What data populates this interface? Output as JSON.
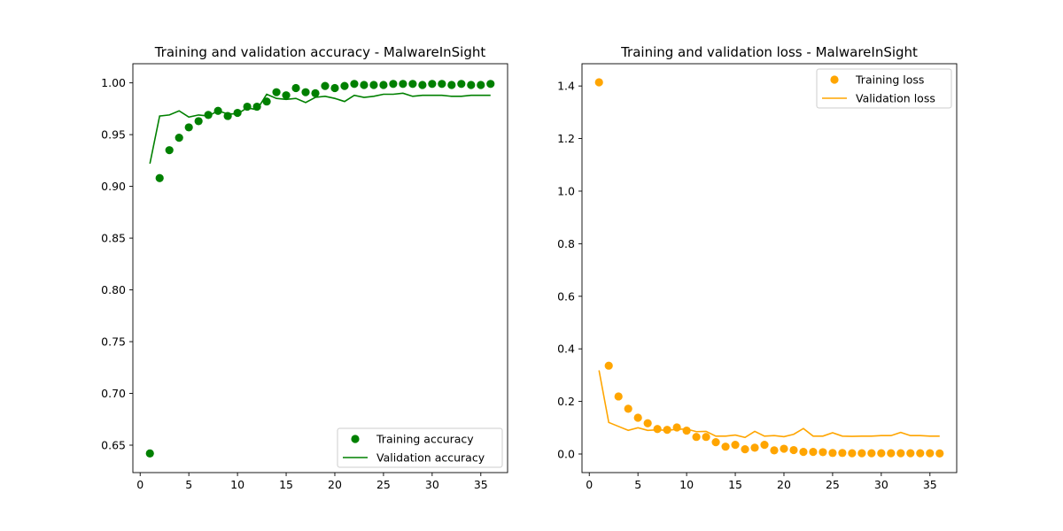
{
  "chart_data": [
    {
      "type": "scatter+line",
      "title": "Training and validation accuracy - MalwareInSight",
      "xlabel": "",
      "ylabel": "",
      "xlim": [
        -0.75,
        37.75
      ],
      "ylim": [
        0.6235,
        1.0185
      ],
      "xticks": [
        0,
        5,
        10,
        15,
        20,
        25,
        30,
        35
      ],
      "yticks": [
        0.65,
        0.7,
        0.75,
        0.8,
        0.85,
        0.9,
        0.95,
        1.0
      ],
      "ytick_labels": [
        "0.65",
        "0.70",
        "0.75",
        "0.80",
        "0.85",
        "0.90",
        "0.95",
        "1.00"
      ],
      "grid": false,
      "legend_position": "lower-right",
      "series": [
        {
          "name": "Training accuracy",
          "kind": "points",
          "color": "#008000",
          "x": [
            1,
            2,
            3,
            4,
            5,
            6,
            7,
            8,
            9,
            10,
            11,
            12,
            13,
            14,
            15,
            16,
            17,
            18,
            19,
            20,
            21,
            22,
            23,
            24,
            25,
            26,
            27,
            28,
            29,
            30,
            31,
            32,
            33,
            34,
            35,
            36
          ],
          "y": [
            0.642,
            0.908,
            0.935,
            0.947,
            0.957,
            0.963,
            0.969,
            0.973,
            0.968,
            0.971,
            0.977,
            0.977,
            0.982,
            0.991,
            0.988,
            0.995,
            0.991,
            0.99,
            0.997,
            0.995,
            0.997,
            0.999,
            0.998,
            0.998,
            0.998,
            0.999,
            0.999,
            0.999,
            0.998,
            0.999,
            0.999,
            0.998,
            0.999,
            0.998,
            0.998,
            0.999
          ]
        },
        {
          "name": "Validation accuracy",
          "kind": "line",
          "color": "#008000",
          "x": [
            1,
            2,
            3,
            4,
            5,
            6,
            7,
            8,
            9,
            10,
            11,
            12,
            13,
            14,
            15,
            16,
            17,
            18,
            19,
            20,
            21,
            22,
            23,
            24,
            25,
            26,
            27,
            28,
            29,
            30,
            31,
            32,
            33,
            34,
            35,
            36
          ],
          "y": [
            0.922,
            0.968,
            0.969,
            0.973,
            0.967,
            0.969,
            0.968,
            0.973,
            0.97,
            0.97,
            0.976,
            0.974,
            0.989,
            0.985,
            0.984,
            0.985,
            0.981,
            0.986,
            0.987,
            0.985,
            0.982,
            0.988,
            0.986,
            0.987,
            0.989,
            0.989,
            0.99,
            0.987,
            0.988,
            0.988,
            0.988,
            0.987,
            0.987,
            0.988,
            0.988,
            0.988
          ]
        }
      ]
    },
    {
      "type": "scatter+line",
      "title": "Training and validation loss - MalwareInSight",
      "xlabel": "",
      "ylabel": "",
      "xlim": [
        -0.75,
        37.75
      ],
      "ylim": [
        -0.0707,
        1.4847
      ],
      "xticks": [
        0,
        5,
        10,
        15,
        20,
        25,
        30,
        35
      ],
      "yticks": [
        0.0,
        0.2,
        0.4,
        0.6,
        0.8,
        1.0,
        1.2,
        1.4
      ],
      "ytick_labels": [
        "0.0",
        "0.2",
        "0.4",
        "0.6",
        "0.8",
        "1.0",
        "1.2",
        "1.4"
      ],
      "grid": false,
      "legend_position": "upper-right",
      "series": [
        {
          "name": "Training loss",
          "kind": "points",
          "color": "#FFA500",
          "x": [
            1,
            2,
            3,
            4,
            5,
            6,
            7,
            8,
            9,
            10,
            11,
            12,
            13,
            14,
            15,
            16,
            17,
            18,
            19,
            20,
            21,
            22,
            23,
            24,
            25,
            26,
            27,
            28,
            29,
            30,
            31,
            32,
            33,
            34,
            35,
            36
          ],
          "y": [
            1.414,
            0.336,
            0.219,
            0.172,
            0.138,
            0.117,
            0.095,
            0.092,
            0.101,
            0.089,
            0.065,
            0.065,
            0.045,
            0.028,
            0.035,
            0.018,
            0.024,
            0.035,
            0.014,
            0.02,
            0.015,
            0.008,
            0.008,
            0.007,
            0.004,
            0.004,
            0.003,
            0.003,
            0.003,
            0.003,
            0.003,
            0.003,
            0.003,
            0.003,
            0.003,
            0.002
          ]
        },
        {
          "name": "Validation loss",
          "kind": "line",
          "color": "#FFA500",
          "x": [
            1,
            2,
            3,
            4,
            5,
            6,
            7,
            8,
            9,
            10,
            11,
            12,
            13,
            14,
            15,
            16,
            17,
            18,
            19,
            20,
            21,
            22,
            23,
            24,
            25,
            26,
            27,
            28,
            29,
            30,
            31,
            32,
            33,
            34,
            35,
            36
          ],
          "y": [
            0.318,
            0.12,
            0.105,
            0.09,
            0.1,
            0.09,
            0.092,
            0.09,
            0.094,
            0.095,
            0.085,
            0.086,
            0.068,
            0.068,
            0.072,
            0.063,
            0.086,
            0.068,
            0.07,
            0.066,
            0.075,
            0.097,
            0.068,
            0.068,
            0.081,
            0.068,
            0.067,
            0.068,
            0.068,
            0.07,
            0.07,
            0.082,
            0.07,
            0.07,
            0.068,
            0.068
          ]
        }
      ]
    }
  ]
}
